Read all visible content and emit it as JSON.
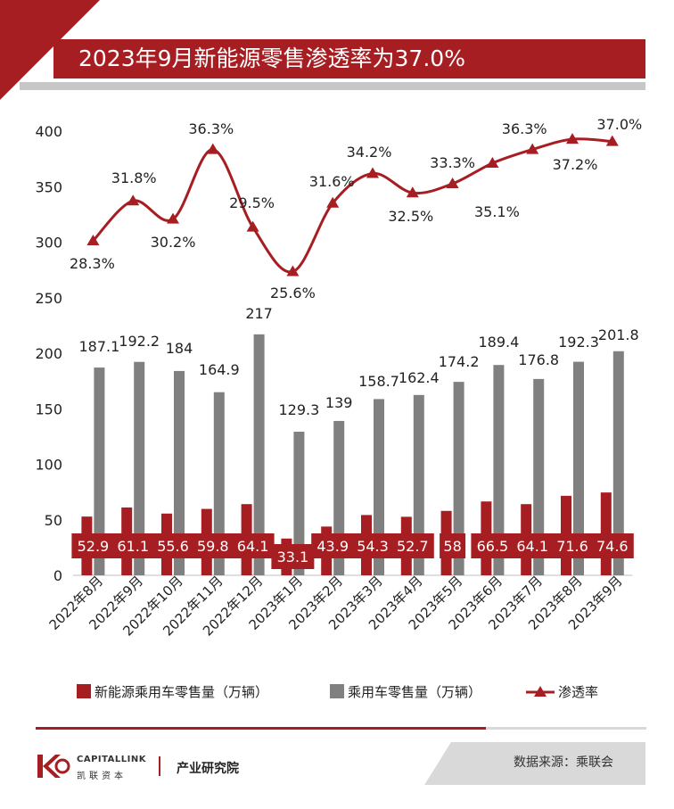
{
  "title": "2023年9月新能源零售渗透率为37.0%",
  "source": "数据来源：乘联会",
  "logo": {
    "en": "CAPITALLINK",
    "cn": "凯联资本",
    "dept": "产业研究院"
  },
  "colors": {
    "nev": "#a71e22",
    "total": "#808080",
    "rate": "#a71e22",
    "label_box": "#a71e22"
  },
  "chart_data": {
    "type": "bar",
    "categories": [
      "2022年8月",
      "2022年9月",
      "2022年10月",
      "2022年11月",
      "2022年12月",
      "2023年1月",
      "2023年2月",
      "2023年3月",
      "2023年4月",
      "2023年5月",
      "2023年6月",
      "2023年7月",
      "2023年8月",
      "2023年9月"
    ],
    "y_ticks": [
      0,
      50,
      100,
      150,
      200,
      250,
      300,
      350,
      400
    ],
    "ylim": [
      0,
      400
    ],
    "grid": false,
    "legend_position": "bottom",
    "series": [
      {
        "name": "新能源乘用车零售量（万辆）",
        "kind": "bar",
        "values": [
          52.9,
          61.1,
          55.6,
          59.8,
          64.1,
          33.1,
          43.9,
          54.3,
          52.7,
          58,
          66.5,
          64.1,
          71.6,
          74.6
        ],
        "labels": [
          "52.9",
          "61.1",
          "55.6",
          "59.8",
          "64.1",
          "33.1",
          "43.9",
          "54.3",
          "52.7",
          "58",
          "66.5",
          "64.1",
          "71.6",
          "74.6"
        ]
      },
      {
        "name": "乘用车零售量（万辆）",
        "kind": "bar",
        "values": [
          187.1,
          192.2,
          184,
          164.9,
          217,
          129.3,
          139,
          158.7,
          162.4,
          174.2,
          189.4,
          176.8,
          192.3,
          201.8
        ],
        "labels": [
          "187.1",
          "192.2",
          "184",
          "164.9",
          "217",
          "129.3",
          "139",
          "158.7",
          "162.4",
          "174.2",
          "189.4",
          "176.8",
          "192.3",
          "201.8"
        ]
      },
      {
        "name": "渗透率",
        "kind": "line",
        "marker": "triangle",
        "values": [
          28.3,
          31.8,
          30.2,
          36.3,
          29.5,
          25.6,
          31.6,
          34.2,
          32.5,
          33.3,
          35.1,
          36.3,
          37.2,
          37.0
        ],
        "labels": [
          "28.3%",
          "31.8%",
          "30.2%",
          "36.3%",
          "29.5%",
          "25.6%",
          "31.6%",
          "34.2%",
          "32.5%",
          "33.3%",
          "35.1%",
          "36.3%",
          "37.2%",
          "37.0%"
        ]
      }
    ]
  }
}
